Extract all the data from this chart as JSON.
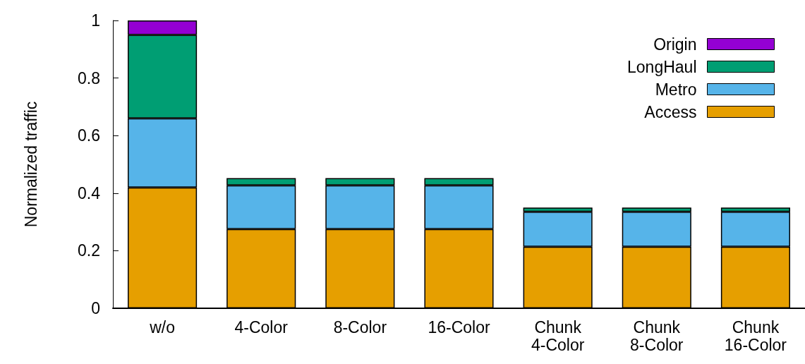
{
  "chart_data": {
    "type": "bar",
    "ylabel": "Normalized traffic",
    "stacked": true,
    "legend": "top right",
    "grid": false,
    "categories": [
      "w/o",
      "4-Color",
      "8-Color",
      "16-Color",
      "Chunk\n4-Color",
      "Chunk\n8-Color",
      "Chunk\n16-Color"
    ],
    "series": [
      {
        "name": "Access",
        "color": "#e69f00",
        "values": [
          0.42,
          0.275,
          0.275,
          0.275,
          0.214,
          0.214,
          0.214
        ]
      },
      {
        "name": "Metro",
        "color": "#56b4e9",
        "values": [
          0.24,
          0.152,
          0.152,
          0.152,
          0.121,
          0.121,
          0.121
        ]
      },
      {
        "name": "LongHaul",
        "color": "#009e73",
        "values": [
          0.29,
          0.025,
          0.025,
          0.025,
          0.015,
          0.015,
          0.015
        ]
      },
      {
        "name": "Origin",
        "color": "#9400d3",
        "values": [
          0.05,
          null,
          null,
          null,
          null,
          null,
          null
        ]
      }
    ],
    "ylim": [
      0,
      1
    ],
    "yticks": [
      0,
      0.2,
      0.4,
      0.6,
      0.8,
      1
    ]
  }
}
